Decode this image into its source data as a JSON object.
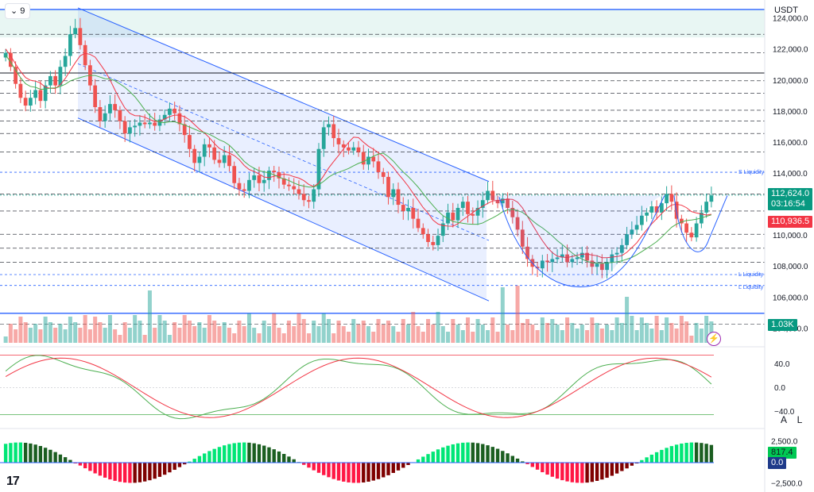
{
  "toolbar": {
    "timeframe_label": "9",
    "currency_label": "USDT"
  },
  "price_axis": {
    "ticks": [
      "124,000.0",
      "122,000.0",
      "120,000.0",
      "118,000.0",
      "116,000.0",
      "114,000.0",
      "112,000.0",
      "110,000.0",
      "108,000.0",
      "106,000.0",
      "104,000.0"
    ],
    "tick_values": [
      124000,
      122000,
      120000,
      118000,
      116000,
      114000,
      112000,
      110000,
      108000,
      106000,
      104000
    ]
  },
  "badges": {
    "last_price": "112,624.0",
    "countdown": "03:16:54",
    "ma_price": "110,936.5",
    "volume": "1.03K"
  },
  "annotations": {
    "s_liquidity": "S Liquidity",
    "l_liquidity_1": "L Liquidity",
    "l_liquidity_2": "L Liquidity"
  },
  "osc_axis": {
    "ticks": [
      "40.0",
      "0.0",
      "−40.0"
    ]
  },
  "macd_axis": {
    "ticks": [
      "2,500.0",
      "−2,500.0"
    ],
    "value_pos": "817.4",
    "value_zero": "0.0"
  },
  "buttons": {
    "auto": "A",
    "log": "L"
  },
  "colors": {
    "up": "#26a69a",
    "down": "#ef5350",
    "accent": "#2962ff",
    "ma": "#f23645",
    "ma_green": "#4caf50"
  },
  "chart_data": {
    "type": "candlestick",
    "ylim": [
      103200,
      124800
    ],
    "levels": {
      "resistance_top": 124600,
      "horizontal_solid": 120500,
      "support_bottom": 105000,
      "s_liquidity": 114100,
      "l_liquidity_1": 107500,
      "l_liquidity_2": 106800,
      "last_price": 112624,
      "ma_price": 110936.5
    },
    "dashed_levels": [
      123000,
      121800,
      120000,
      119200,
      118100,
      117400,
      116600,
      115400,
      112700,
      111600,
      110100,
      109200,
      108300,
      104300
    ],
    "close": [
      121800,
      120900,
      119800,
      118900,
      118400,
      118900,
      119400,
      118700,
      119700,
      120300,
      119700,
      120900,
      121600,
      123000,
      123400,
      122300,
      121000,
      119700,
      118300,
      117400,
      117900,
      118500,
      118100,
      117400,
      116600,
      117000,
      117100,
      117300,
      117200,
      117300,
      117100,
      117500,
      117800,
      118200,
      117900,
      117200,
      116500,
      115600,
      114700,
      115100,
      115900,
      115700,
      114900,
      114700,
      115200,
      114500,
      113400,
      113000,
      112900,
      113600,
      113900,
      113400,
      113600,
      114200,
      114100,
      113700,
      113300,
      113200,
      113000,
      112700,
      112300,
      112200,
      113000,
      115600,
      117000,
      117200,
      116300,
      115900,
      115700,
      115500,
      115700,
      115400,
      114600,
      115100,
      114800,
      114100,
      113800,
      112500,
      113000,
      112000,
      111600,
      111800,
      111100,
      110500,
      110100,
      109600,
      109400,
      110000,
      110800,
      111500,
      111000,
      111800,
      112200,
      111400,
      111300,
      111800,
      112300,
      112900,
      112300,
      112100,
      112400,
      111800,
      111200,
      110400,
      109300,
      108500,
      108000,
      107900,
      108400,
      108300,
      108500,
      108600,
      108800,
      108300,
      108500,
      108600,
      108900,
      108400,
      108000,
      108200,
      107800,
      108300,
      108800,
      108900,
      109400,
      110100,
      110400,
      110700,
      111300,
      111500,
      111900,
      111500,
      112100,
      112700,
      112200,
      111100,
      110800,
      110200,
      109900,
      110800,
      111500,
      112200,
      112600
    ],
    "volume_scale": [
      0,
      1
    ],
    "oscillator": {
      "ylim": [
        -55,
        65
      ],
      "ticks": [
        40,
        0,
        -40
      ]
    },
    "macd": {
      "ylim": [
        -3200,
        3300
      ],
      "ticks": [
        2500,
        -2500
      ],
      "last": 817.4
    }
  }
}
